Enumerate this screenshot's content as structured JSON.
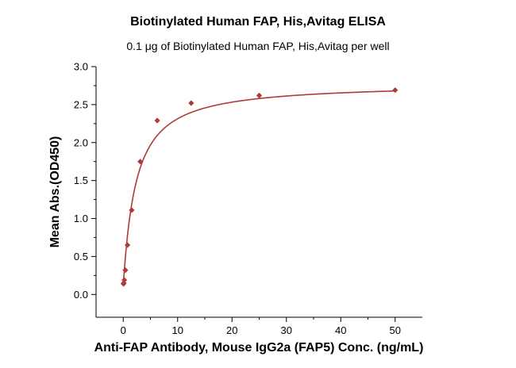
{
  "chart_data": {
    "type": "scatter",
    "title": "Biotinylated Human FAP, His,Avitag ELISA",
    "subtitle": "0.1 μg of Biotinylated Human FAP, His,Avitag per well",
    "xlabel": "Anti-FAP Antibody, Mouse IgG2a (FAP5) Conc. (ng/mL)",
    "ylabel": "Mean Abs.(OD450)",
    "xlim": [
      -5,
      55
    ],
    "ylim": [
      -0.3,
      3.0
    ],
    "x_ticks": [
      0,
      10,
      20,
      30,
      40,
      50
    ],
    "x_tick_labels": [
      "0",
      "10",
      "20",
      "30",
      "40",
      "50"
    ],
    "y_ticks": [
      0.0,
      0.5,
      1.0,
      1.5,
      2.0,
      2.5,
      3.0
    ],
    "y_tick_labels": [
      "0.0",
      "0.5",
      "1.0",
      "1.5",
      "2.0",
      "2.5",
      "3.0"
    ],
    "grid": false,
    "legend": "none",
    "series": [
      {
        "x": [
          0.049,
          0.098,
          0.195,
          0.391,
          0.781,
          1.563,
          3.125,
          6.25,
          12.5,
          25,
          50
        ],
        "y": [
          0.14,
          0.15,
          0.19,
          0.32,
          0.65,
          1.11,
          1.75,
          2.29,
          2.52,
          2.62,
          2.69
        ],
        "marker": "diamond",
        "color": "#b03a3a"
      }
    ],
    "fit_curve": {
      "model": "four-parameter logistic",
      "bottom": 0.13,
      "top": 2.78,
      "ec50": 2.3,
      "hill": 1.05,
      "color": "#b03a3a"
    }
  }
}
